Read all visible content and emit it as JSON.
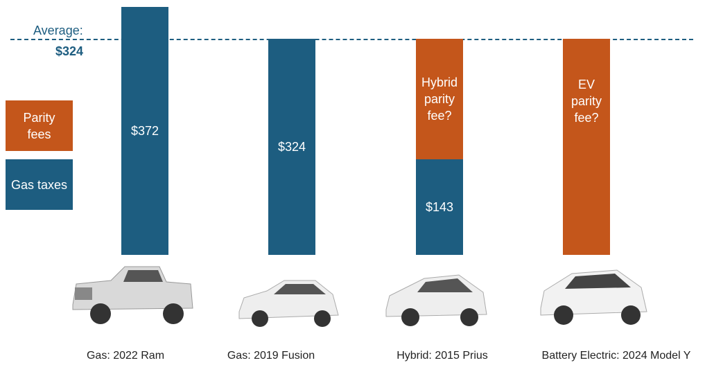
{
  "chart_data": {
    "type": "stacked_bar",
    "categories": [
      "Gas: 2022 Ram",
      "Gas: 2019 Fusion",
      "Hybrid: 2015 Prius",
      "Battery Electric: 2024 Model Y"
    ],
    "series": [
      {
        "name": "Gas taxes",
        "color": "#1d5d80",
        "values": [
          372,
          324,
          143,
          null
        ],
        "value_labels": [
          "$372",
          "$324",
          "$143",
          null
        ]
      },
      {
        "name": "Parity fees",
        "color": "#c4561b",
        "values": [
          null,
          null,
          181,
          324
        ],
        "value_labels": [
          null,
          null,
          "Hybrid parity fee?",
          "EV parity fee?"
        ]
      }
    ],
    "ylim": [
      0,
      372
    ],
    "average": {
      "label": "Average:",
      "value": 324,
      "value_label": "$324"
    },
    "legend": "left"
  }
}
